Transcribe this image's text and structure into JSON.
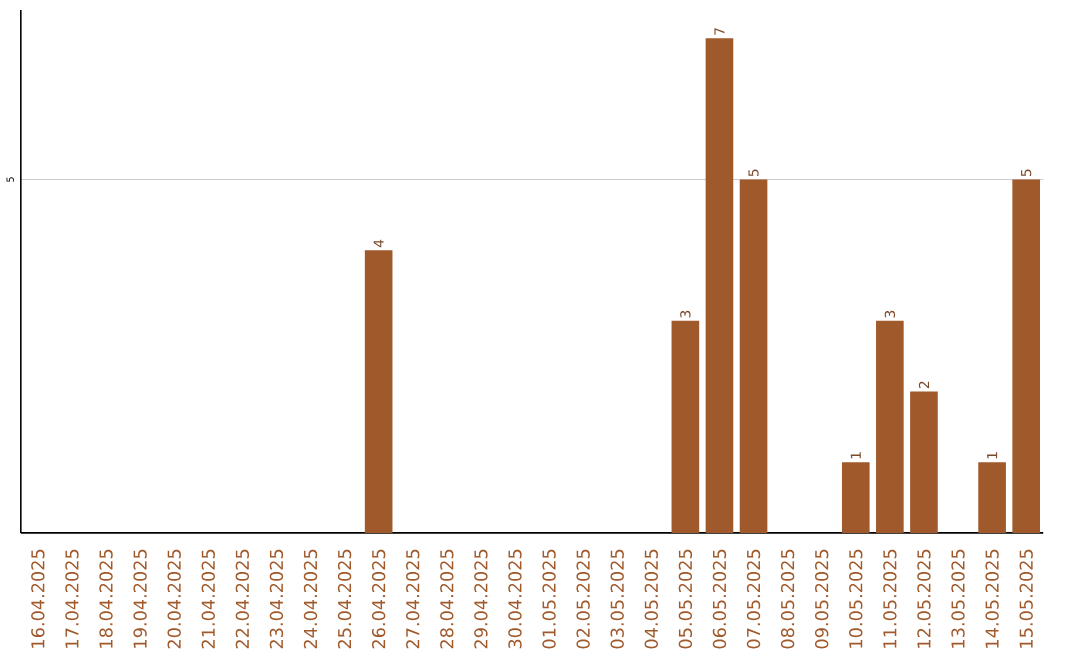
{
  "chart_data": {
    "type": "bar",
    "categories": [
      "16.04.2025",
      "17.04.2025",
      "18.04.2025",
      "19.04.2025",
      "20.04.2025",
      "21.04.2025",
      "22.04.2025",
      "23.04.2025",
      "24.04.2025",
      "25.04.2025",
      "26.04.2025",
      "27.04.2025",
      "28.04.2025",
      "29.04.2025",
      "30.04.2025",
      "01.05.2025",
      "02.05.2025",
      "03.05.2025",
      "04.05.2025",
      "05.05.2025",
      "06.05.2025",
      "07.05.2025",
      "08.05.2025",
      "09.05.2025",
      "10.05.2025",
      "11.05.2025",
      "12.05.2025",
      "13.05.2025",
      "14.05.2025",
      "15.05.2025"
    ],
    "values": [
      0,
      0,
      0,
      0,
      0,
      0,
      0,
      0,
      0,
      0,
      4,
      0,
      0,
      0,
      0,
      0,
      0,
      0,
      0,
      3,
      7,
      5,
      0,
      0,
      1,
      3,
      2,
      0,
      1,
      5
    ],
    "value_labels": [
      null,
      null,
      null,
      null,
      null,
      null,
      null,
      null,
      null,
      null,
      "4",
      null,
      null,
      null,
      null,
      null,
      null,
      null,
      null,
      "3",
      "7",
      "5",
      null,
      null,
      "1",
      "3",
      "2",
      null,
      "1",
      "5"
    ],
    "color": "#a0592a",
    "ylim": [
      0,
      7.4
    ],
    "yticks": [
      5
    ],
    "grid": "y"
  }
}
